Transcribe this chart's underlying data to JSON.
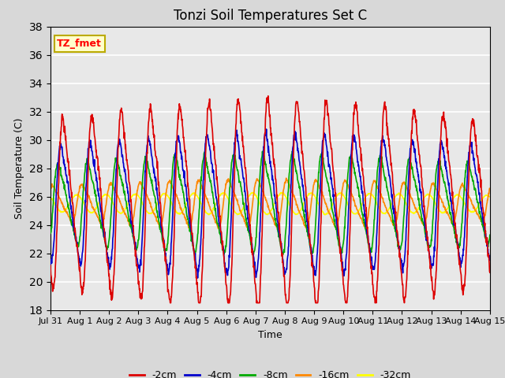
{
  "title": "Tonzi Soil Temperatures Set C",
  "xlabel": "Time",
  "ylabel": "Soil Temperature (C)",
  "ylim": [
    18,
    38
  ],
  "yticks": [
    18,
    20,
    22,
    24,
    26,
    28,
    30,
    32,
    34,
    36,
    38
  ],
  "plot_bg_color": "#e8e8e8",
  "fig_bg_color": "#d8d8d8",
  "annotation_text": "TZ_fmet",
  "annotation_bg": "#ffffcc",
  "annotation_border": "#bbaa00",
  "series_colors": {
    "-2cm": "#dd0000",
    "-4cm": "#0000cc",
    "-8cm": "#00aa00",
    "-16cm": "#ff8800",
    "-32cm": "#ffff00"
  },
  "legend_labels": [
    "-2cm",
    "-4cm",
    "-8cm",
    "-16cm",
    "-32cm"
  ],
  "x_tick_labels": [
    "Jul 31",
    "Aug 1",
    "Aug 2",
    "Aug 3",
    "Aug 4",
    "Aug 5",
    "Aug 6",
    "Aug 7",
    "Aug 8",
    "Aug 9",
    "Aug 10",
    "Aug 11",
    "Aug 12",
    "Aug 13",
    "Aug 14",
    "Aug 15"
  ],
  "num_days": 15,
  "points_per_day": 96
}
